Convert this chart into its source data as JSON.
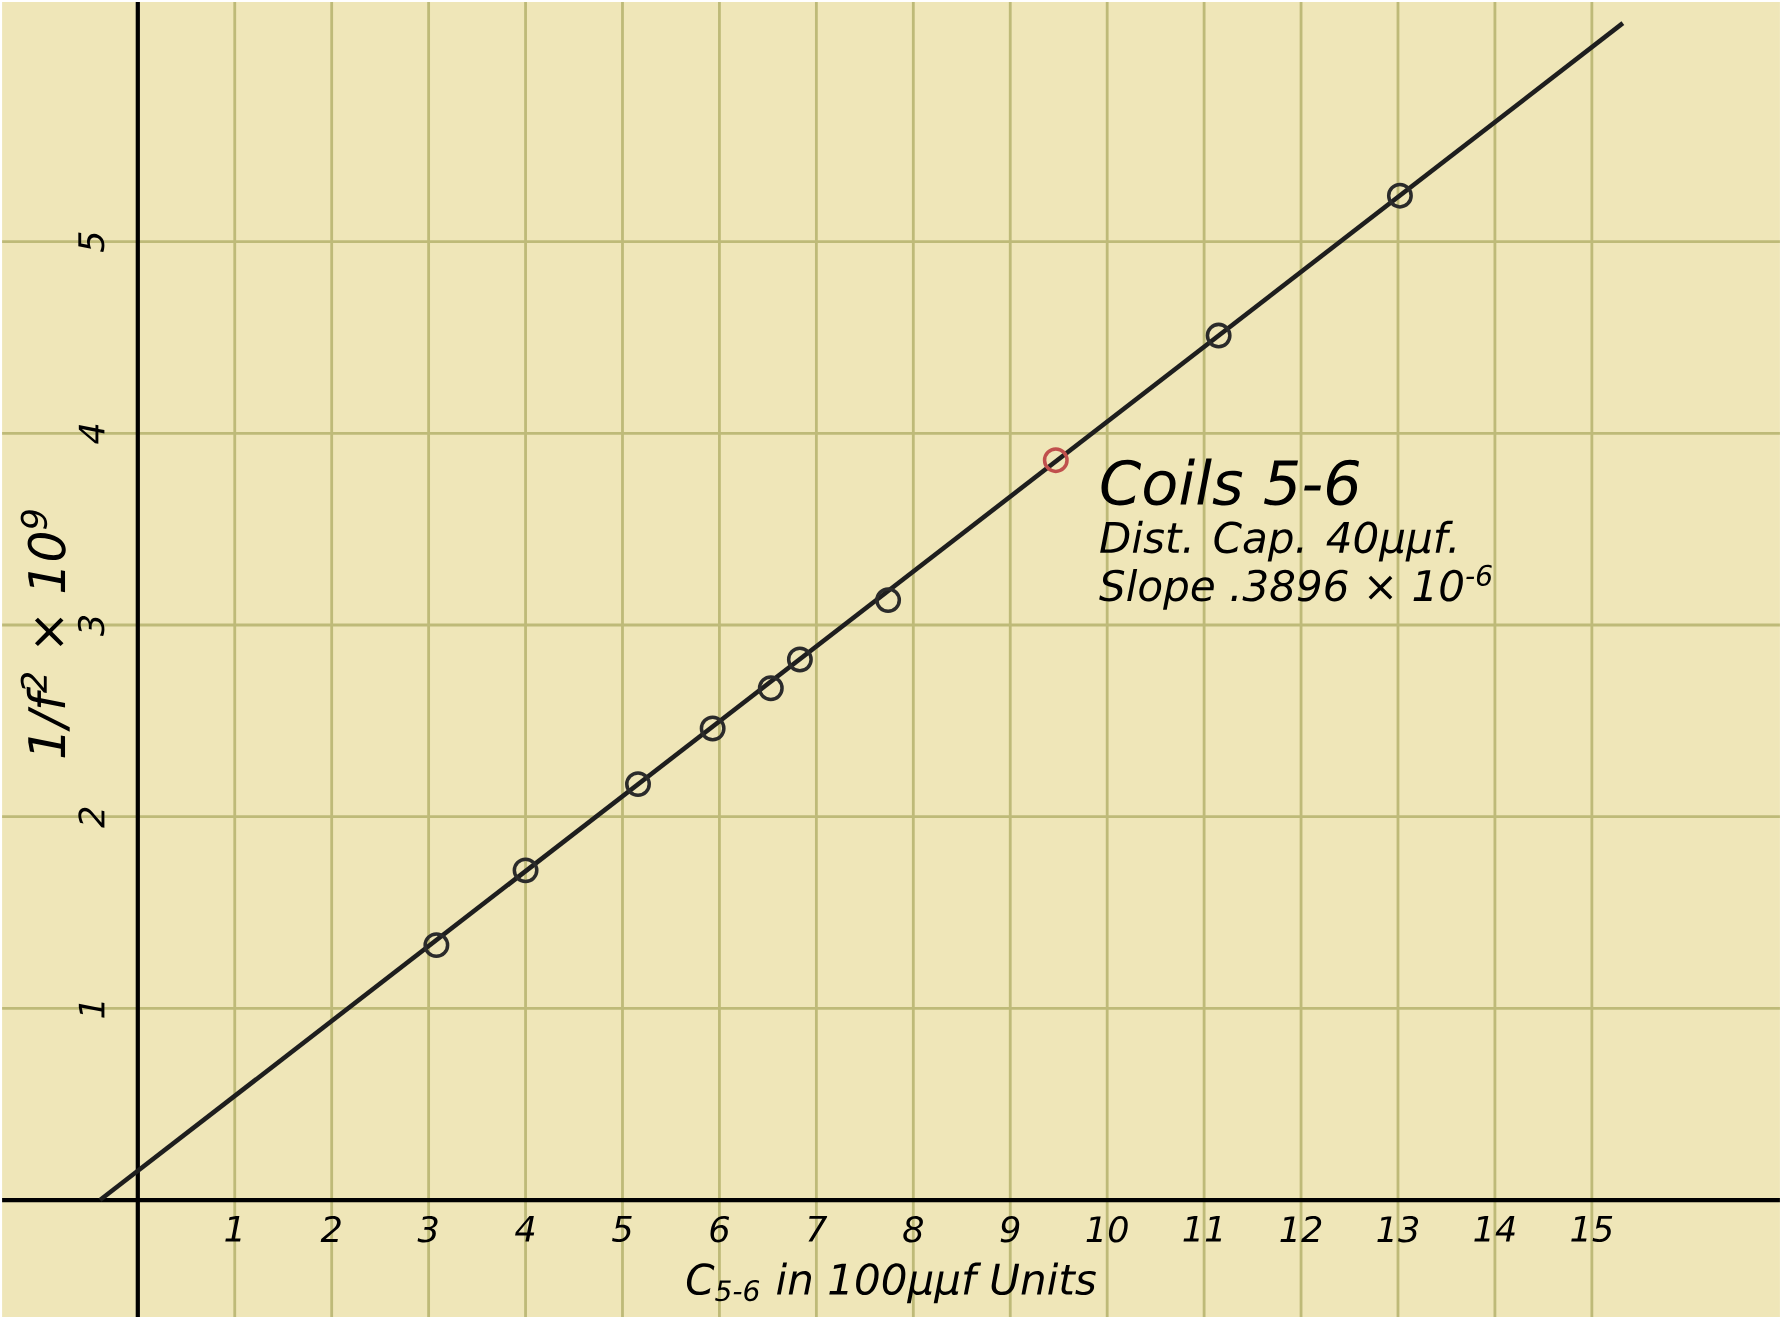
{
  "chart_data": {
    "type": "scatter",
    "xlabel": "C$_{5-6}$ in 100μμf Units",
    "ylabel": "1/f$^{2}$ × 10$^{9}$",
    "annotations": [
      "Coils 5-6",
      "Dist. Cap. 40μμf.",
      "Slope .3896 × 10$^{-6}$"
    ],
    "xlim": [
      -1.4,
      16.94
    ],
    "ylim": [
      -0.61,
      6.25
    ],
    "xticks": [
      1,
      2,
      3,
      4,
      5,
      6,
      7,
      8,
      9,
      10,
      11,
      12,
      13,
      14,
      15
    ],
    "yticks": [
      1,
      2,
      3,
      4,
      5
    ],
    "grid": true,
    "marker": "circle",
    "series": [
      {
        "color": "#2b2b2b",
        "x": [
          3.08,
          4.0,
          5.16,
          5.93,
          6.53,
          6.83,
          7.74,
          11.15,
          13.02
        ],
        "values": [
          1.33,
          1.72,
          2.17,
          2.46,
          2.67,
          2.82,
          3.13,
          4.51,
          5.24
        ]
      },
      {
        "color": "#c0504d",
        "x": [
          9.47
        ],
        "values": [
          3.86
        ]
      },
      {
        "type": "line",
        "color": "#1e1e1e",
        "marker": "none",
        "x": [
          -0.39,
          15.32
        ],
        "values": [
          0,
          6.14
        ]
      }
    ]
  }
}
